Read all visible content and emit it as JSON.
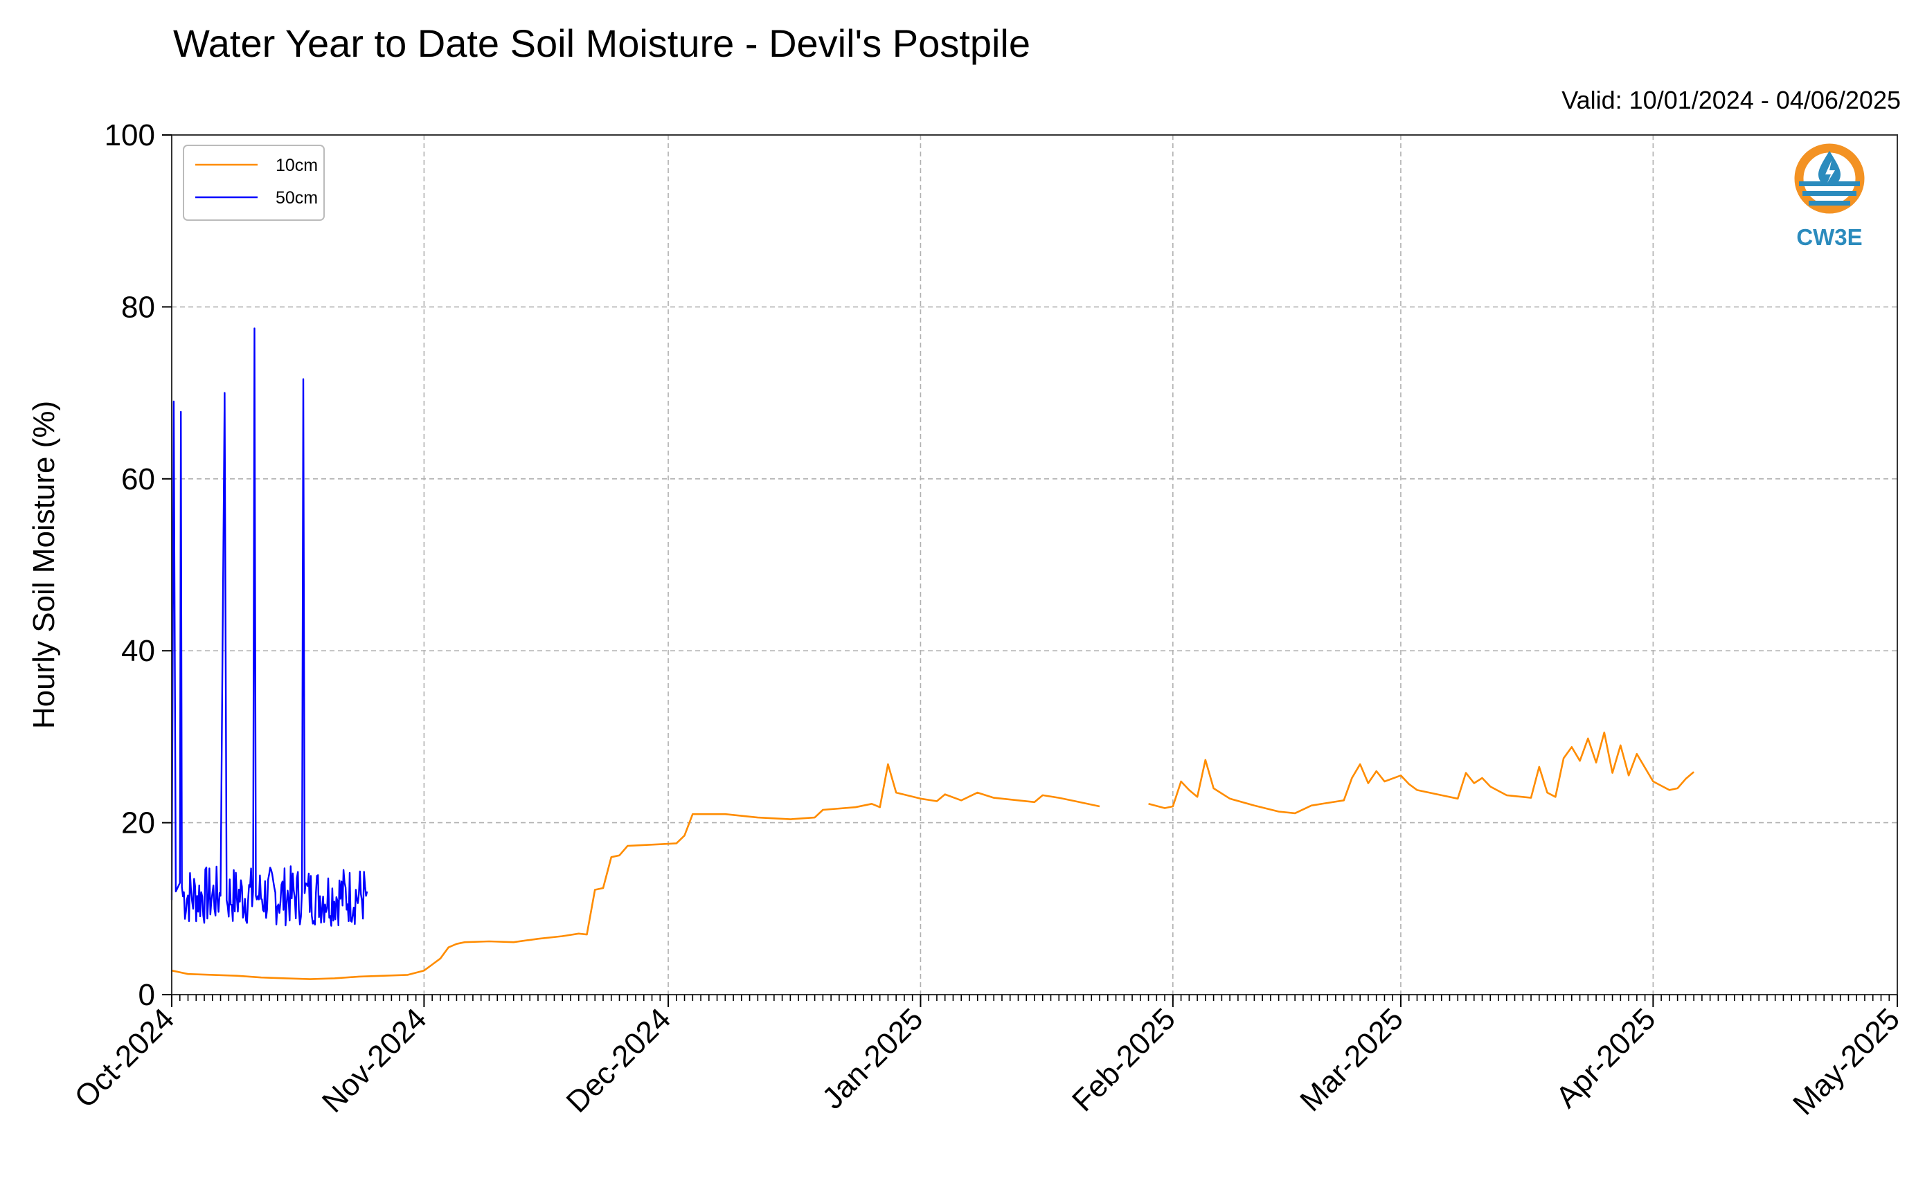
{
  "chart_data": {
    "type": "line",
    "title": "Water Year to Date Soil Moisture - Devil's Postpile",
    "subtitle": "Valid: 10/01/2024 - 04/06/2025",
    "xlabel": "",
    "ylabel": "Hourly Soil Moisture (%)",
    "ylim": [
      0,
      100
    ],
    "xlim": [
      "2024-10-01",
      "2025-05-01"
    ],
    "y_ticks": [
      0,
      20,
      40,
      60,
      80,
      100
    ],
    "x_ticks": [
      {
        "date": "2024-10-01",
        "label": "Oct-2024"
      },
      {
        "date": "2024-11-01",
        "label": "Nov-2024"
      },
      {
        "date": "2024-12-01",
        "label": "Dec-2024"
      },
      {
        "date": "2025-01-01",
        "label": "Jan-2025"
      },
      {
        "date": "2025-02-01",
        "label": "Feb-2025"
      },
      {
        "date": "2025-03-01",
        "label": "Mar-2025"
      },
      {
        "date": "2025-04-01",
        "label": "Apr-2025"
      },
      {
        "date": "2025-05-01",
        "label": "May-2025"
      }
    ],
    "grid": true,
    "legend_position": "top-left",
    "series": [
      {
        "name": "10cm",
        "color": "#ff8c00",
        "points": [
          [
            "2024-10-01",
            2.8
          ],
          [
            "2024-10-03",
            2.4
          ],
          [
            "2024-10-06",
            2.3
          ],
          [
            "2024-10-09",
            2.2
          ],
          [
            "2024-10-12",
            2.0
          ],
          [
            "2024-10-15",
            1.9
          ],
          [
            "2024-10-18",
            1.8
          ],
          [
            "2024-10-21",
            1.9
          ],
          [
            "2024-10-24",
            2.1
          ],
          [
            "2024-10-27",
            2.2
          ],
          [
            "2024-10-30",
            2.3
          ],
          [
            "2024-11-01",
            2.8
          ],
          [
            "2024-11-02",
            3.5
          ],
          [
            "2024-11-03",
            4.2
          ],
          [
            "2024-11-04",
            5.5
          ],
          [
            "2024-11-05",
            5.9
          ],
          [
            "2024-11-06",
            6.1
          ],
          [
            "2024-11-09",
            6.2
          ],
          [
            "2024-11-12",
            6.1
          ],
          [
            "2024-11-15",
            6.5
          ],
          [
            "2024-11-18",
            6.8
          ],
          [
            "2024-11-20",
            7.1
          ],
          [
            "2024-11-21",
            7.0
          ],
          [
            "2024-11-22",
            12.2
          ],
          [
            "2024-11-23",
            12.4
          ],
          [
            "2024-11-24",
            16.0
          ],
          [
            "2024-11-25",
            16.2
          ],
          [
            "2024-11-26",
            17.3
          ],
          [
            "2024-11-30",
            17.5
          ],
          [
            "2024-12-02",
            17.6
          ],
          [
            "2024-12-03",
            18.5
          ],
          [
            "2024-12-04",
            21.0
          ],
          [
            "2024-12-08",
            21.0
          ],
          [
            "2024-12-12",
            20.6
          ],
          [
            "2024-12-16",
            20.4
          ],
          [
            "2024-12-19",
            20.6
          ],
          [
            "2024-12-20",
            21.5
          ],
          [
            "2024-12-24",
            21.8
          ],
          [
            "2024-12-26",
            22.2
          ],
          [
            "2024-12-27",
            21.8
          ],
          [
            "2024-12-28",
            26.8
          ],
          [
            "2024-12-29",
            23.5
          ],
          [
            "2025-01-01",
            22.8
          ],
          [
            "2025-01-03",
            22.5
          ],
          [
            "2025-01-04",
            23.3
          ],
          [
            "2025-01-06",
            22.6
          ],
          [
            "2025-01-08",
            23.5
          ],
          [
            "2025-01-10",
            22.9
          ],
          [
            "2025-01-12",
            22.7
          ],
          [
            "2025-01-15",
            22.4
          ],
          [
            "2025-01-16",
            23.2
          ],
          [
            "2025-01-18",
            22.9
          ],
          [
            "2025-01-20",
            22.5
          ],
          [
            "2025-01-23",
            21.9
          ],
          null,
          [
            "2025-01-29",
            22.2
          ],
          [
            "2025-01-31",
            21.7
          ],
          [
            "2025-02-01",
            21.9
          ],
          [
            "2025-02-02",
            24.8
          ],
          [
            "2025-02-03",
            23.8
          ],
          [
            "2025-02-04",
            23.0
          ],
          [
            "2025-02-05",
            27.3
          ],
          [
            "2025-02-06",
            24.0
          ],
          [
            "2025-02-08",
            22.8
          ],
          [
            "2025-02-11",
            22.0
          ],
          [
            "2025-02-14",
            21.3
          ],
          [
            "2025-02-16",
            21.1
          ],
          [
            "2025-02-18",
            22.0
          ],
          [
            "2025-02-20",
            22.3
          ],
          [
            "2025-02-22",
            22.6
          ],
          [
            "2025-02-23",
            25.2
          ],
          [
            "2025-02-24",
            26.8
          ],
          [
            "2025-02-25",
            24.6
          ],
          [
            "2025-02-26",
            26.0
          ],
          [
            "2025-02-27",
            24.8
          ],
          [
            "2025-03-01",
            25.5
          ],
          [
            "2025-03-02",
            24.5
          ],
          [
            "2025-03-03",
            23.8
          ],
          [
            "2025-03-06",
            23.2
          ],
          [
            "2025-03-08",
            22.8
          ],
          [
            "2025-03-09",
            25.8
          ],
          [
            "2025-03-10",
            24.6
          ],
          [
            "2025-03-11",
            25.2
          ],
          [
            "2025-03-12",
            24.2
          ],
          [
            "2025-03-14",
            23.2
          ],
          [
            "2025-03-17",
            22.9
          ],
          [
            "2025-03-18",
            26.5
          ],
          [
            "2025-03-19",
            23.5
          ],
          [
            "2025-03-20",
            23.0
          ],
          [
            "2025-03-21",
            27.5
          ],
          [
            "2025-03-22",
            28.8
          ],
          [
            "2025-03-23",
            27.2
          ],
          [
            "2025-03-24",
            29.8
          ],
          [
            "2025-03-25",
            27.0
          ],
          [
            "2025-03-26",
            30.5
          ],
          [
            "2025-03-27",
            25.8
          ],
          [
            "2025-03-28",
            29.0
          ],
          [
            "2025-03-29",
            25.5
          ],
          [
            "2025-03-30",
            28.0
          ],
          [
            "2025-04-01",
            24.8
          ],
          [
            "2025-04-03",
            23.8
          ],
          [
            "2025-04-04",
            24.0
          ],
          [
            "2025-04-05",
            25.1
          ],
          [
            "2025-04-06",
            25.9
          ]
        ]
      },
      {
        "name": "50cm",
        "color": "#0000ff",
        "noise_range": [
          8,
          15
        ],
        "points": [
          [
            "2024-10-01",
            11.0
          ],
          [
            "2024-10-01T06",
            69.0
          ],
          [
            "2024-10-01T12",
            12.0
          ],
          [
            "2024-10-02",
            13.0
          ],
          [
            "2024-10-02T03",
            67.8
          ],
          [
            "2024-10-02T06",
            12.5
          ],
          [
            "2024-10-07",
            11.5
          ],
          [
            "2024-10-07T12",
            70.0
          ],
          [
            "2024-10-07T18",
            11.0
          ],
          [
            "2024-10-11",
            12.0
          ],
          [
            "2024-10-11T04",
            77.5
          ],
          [
            "2024-10-11T08",
            11.5
          ],
          [
            "2024-10-17",
            12.0
          ],
          [
            "2024-10-17T04",
            71.6
          ],
          [
            "2024-10-17T08",
            11.8
          ],
          [
            "2024-10-25",
            12.0
          ]
        ]
      }
    ]
  },
  "logo": {
    "text": "CW3E",
    "colors": {
      "orange": "#f39223",
      "blue": "#2b8bbd"
    }
  }
}
